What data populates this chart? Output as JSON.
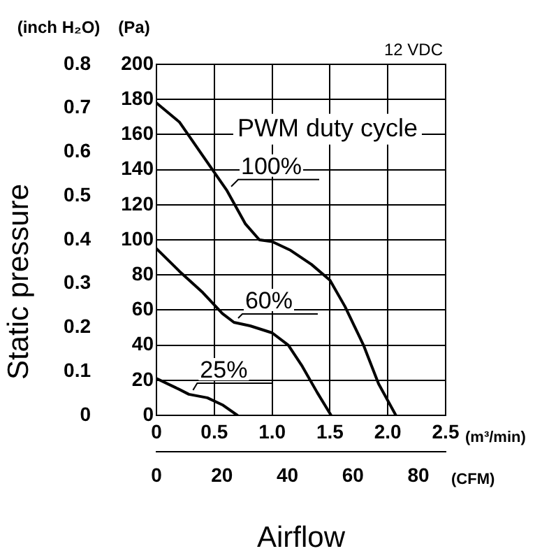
{
  "chart_data": {
    "type": "line",
    "xlabel": "(m³/min)",
    "ylabel": "(Pa)",
    "y2label": "(inch H₂O)",
    "x2label": "(CFM)",
    "annotations": [
      "Static pressure",
      "12 VDC",
      "PWM duty cycle",
      "Airflow"
    ],
    "xlim": [
      0,
      2.5
    ],
    "xticks": [
      0,
      {
        "value": 0.5,
        "label": "0.5"
      },
      {
        "value": 1,
        "label": "1.0"
      },
      {
        "value": 1.5,
        "label": "1.5"
      },
      {
        "value": 2,
        "label": "2.0"
      },
      {
        "value": 2.5,
        "label": "2.5"
      }
    ],
    "x2lim": [
      0,
      88.3
    ],
    "x2ticks": [
      0,
      20,
      40,
      60,
      80
    ],
    "ylim": [
      0,
      200
    ],
    "yticks": [
      0,
      20,
      40,
      60,
      80,
      100,
      120,
      140,
      160,
      180,
      200
    ],
    "y2lim": [
      0,
      0.8
    ],
    "y2ticks": [
      0,
      0.1,
      0.2,
      0.3,
      0.4,
      0.5,
      0.6,
      0.7,
      0.8
    ],
    "grid": true,
    "legend": false,
    "marker": "none",
    "line_style": "solid",
    "series": [
      {
        "name": "100%",
        "color": "#000000",
        "x": [
          0,
          0.2,
          0.4,
          0.61,
          0.77,
          0.89,
          1.0,
          1.16,
          1.34,
          1.5,
          1.63,
          1.79,
          1.92,
          2.07
        ],
        "values": [
          178,
          167,
          148,
          128,
          109,
          100,
          99,
          94,
          86,
          77,
          62,
          40,
          18,
          0
        ]
      },
      {
        "name": "60%",
        "color": "#000000",
        "x": [
          0,
          0.2,
          0.4,
          0.57,
          0.67,
          0.81,
          1.0,
          1.14,
          1.26,
          1.39,
          1.51
        ],
        "values": [
          95,
          82,
          70,
          58,
          53,
          51,
          47,
          40,
          28,
          13,
          0
        ]
      },
      {
        "name": "25%",
        "color": "#000000",
        "x": [
          0,
          0.16,
          0.28,
          0.44,
          0.57,
          0.7
        ],
        "values": [
          21,
          16,
          12,
          10,
          6,
          0
        ]
      }
    ]
  }
}
